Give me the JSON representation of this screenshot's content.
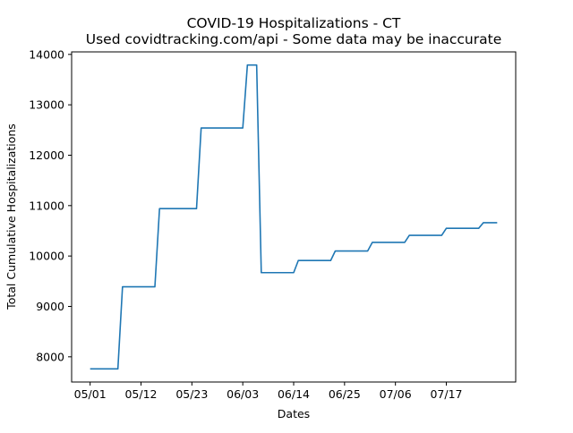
{
  "chart_data": {
    "type": "line",
    "title": "COVID-19 Hospitalizations - CT",
    "subtitle": "Used covidtracking.com/api - Some data may be inaccurate",
    "xlabel": "Dates",
    "ylabel": "Total Cumulative Hospitalizations",
    "grid": false,
    "legend": "none",
    "x_ticks": [
      "05/01",
      "05/12",
      "05/23",
      "06/03",
      "06/14",
      "06/25",
      "07/06",
      "07/17"
    ],
    "y_ticks": [
      8000,
      9000,
      10000,
      11000,
      12000,
      13000,
      14000
    ],
    "ylim": [
      7500,
      14050
    ],
    "xlim": [
      "04/27",
      "08/01"
    ],
    "line_color": "#1f77b4",
    "series": [
      {
        "x": [
          "05/01",
          "05/02",
          "05/03",
          "05/04",
          "05/05",
          "05/06",
          "05/07",
          "05/08",
          "05/09",
          "05/10",
          "05/11",
          "05/12",
          "05/13",
          "05/14",
          "05/15",
          "05/16",
          "05/17",
          "05/18",
          "05/19",
          "05/20",
          "05/21",
          "05/22",
          "05/23",
          "05/24",
          "05/25",
          "05/26",
          "05/27",
          "05/28",
          "05/29",
          "05/30",
          "05/31",
          "06/01",
          "06/02",
          "06/03",
          "06/04",
          "06/05",
          "06/06",
          "06/07",
          "06/08",
          "06/09",
          "06/10",
          "06/11",
          "06/12",
          "06/13",
          "06/14",
          "06/15",
          "06/16",
          "06/17",
          "06/18",
          "06/19",
          "06/20",
          "06/21",
          "06/22",
          "06/23",
          "06/24",
          "06/25",
          "06/26",
          "06/27",
          "06/28",
          "06/29",
          "06/30",
          "07/01",
          "07/02",
          "07/03",
          "07/04",
          "07/05",
          "07/06",
          "07/07",
          "07/08",
          "07/09",
          "07/10",
          "07/11",
          "07/12",
          "07/13",
          "07/14",
          "07/15",
          "07/16",
          "07/17",
          "07/18",
          "07/19",
          "07/20",
          "07/21",
          "07/22",
          "07/23",
          "07/24",
          "07/25",
          "07/26",
          "07/27",
          "07/28"
        ],
        "values": [
          7760,
          7760,
          7760,
          7760,
          7760,
          7760,
          7760,
          9390,
          9390,
          9390,
          9390,
          9390,
          9390,
          9390,
          9390,
          10940,
          10940,
          10940,
          10940,
          10940,
          10940,
          10940,
          10940,
          10940,
          12540,
          12540,
          12540,
          12540,
          12540,
          12540,
          12540,
          12540,
          12540,
          12540,
          13790,
          13790,
          13790,
          9670,
          9670,
          9670,
          9670,
          9670,
          9670,
          9670,
          9670,
          9910,
          9910,
          9910,
          9910,
          9910,
          9910,
          9910,
          9910,
          10100,
          10100,
          10100,
          10100,
          10100,
          10100,
          10100,
          10100,
          10270,
          10270,
          10270,
          10270,
          10270,
          10270,
          10270,
          10270,
          10410,
          10410,
          10410,
          10410,
          10410,
          10410,
          10410,
          10410,
          10550,
          10550,
          10550,
          10550,
          10550,
          10550,
          10550,
          10550,
          10660,
          10660,
          10660,
          10660
        ]
      }
    ]
  }
}
